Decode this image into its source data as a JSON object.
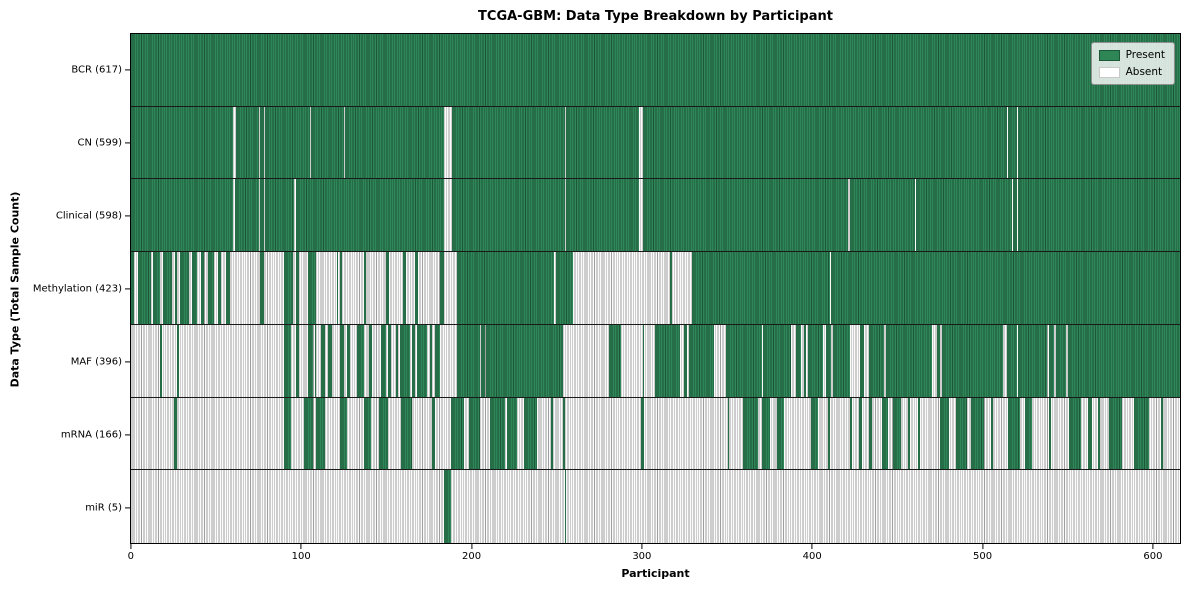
{
  "title": "TCGA-GBM: Data Type Breakdown by Participant",
  "legend": {
    "items": [
      {
        "label": "Present",
        "color": "#2e8656"
      },
      {
        "label": "Absent",
        "color": "#ffffff"
      }
    ],
    "position": "upper right"
  },
  "colors": {
    "present_fill": "#2e8656",
    "present_edge": "#1d5737",
    "absent_fill": "#fbfbfb",
    "absent_edge": "#9f9f9f",
    "axes_border": "#000000",
    "row_separator": "#1a1a1a"
  },
  "chart_data": {
    "type": "heatmap",
    "title": "TCGA-GBM: Data Type Breakdown by Participant",
    "xlabel": "Participant",
    "ylabel": "Data Type (Total Sample Count)",
    "x_ticks": [
      0,
      100,
      200,
      300,
      400,
      500,
      600
    ],
    "xlim": [
      0,
      617
    ],
    "n_participants": 617,
    "grid": false,
    "legend_position": "upper right",
    "states": [
      "Present",
      "Absent"
    ],
    "rows": [
      {
        "data_type": "BCR",
        "label": "BCR (617)",
        "total": 617,
        "present_intervals": [
          [
            0,
            617
          ]
        ]
      },
      {
        "data_type": "CN",
        "label": "CN (599)",
        "total": 599,
        "present_intervals": [
          [
            0,
            60
          ],
          [
            62,
            75
          ],
          [
            76,
            78
          ],
          [
            79,
            105
          ],
          [
            106,
            125
          ],
          [
            126,
            184
          ],
          [
            189,
            255
          ],
          [
            256,
            299
          ],
          [
            301,
            515
          ],
          [
            516,
            521
          ],
          [
            522,
            617
          ]
        ]
      },
      {
        "data_type": "Clinical",
        "label": "Clinical (598)",
        "total": 598,
        "present_intervals": [
          [
            0,
            60
          ],
          [
            61,
            75
          ],
          [
            76,
            78
          ],
          [
            79,
            96
          ],
          [
            97,
            184
          ],
          [
            189,
            255
          ],
          [
            256,
            299
          ],
          [
            301,
            422
          ],
          [
            423,
            461
          ],
          [
            462,
            518
          ],
          [
            519,
            521
          ],
          [
            522,
            617
          ]
        ]
      },
      {
        "data_type": "Methylation",
        "label": "Methylation (423)",
        "total": 423,
        "present_intervals": [
          [
            0,
            2
          ],
          [
            4,
            12
          ],
          [
            13,
            17
          ],
          [
            19,
            24
          ],
          [
            26,
            27
          ],
          [
            29,
            34
          ],
          [
            36,
            39
          ],
          [
            41,
            43
          ],
          [
            45,
            49
          ],
          [
            51,
            53
          ],
          [
            56,
            58
          ],
          [
            76,
            78
          ],
          [
            90,
            95
          ],
          [
            97,
            99
          ],
          [
            104,
            109
          ],
          [
            121,
            122
          ],
          [
            123,
            124
          ],
          [
            137,
            138
          ],
          [
            150,
            152
          ],
          [
            160,
            162
          ],
          [
            167,
            169
          ],
          [
            182,
            184
          ],
          [
            192,
            249
          ],
          [
            250,
            260
          ],
          [
            317,
            318
          ],
          [
            330,
            411
          ],
          [
            412,
            617
          ]
        ]
      },
      {
        "data_type": "MAF",
        "label": "MAF (396)",
        "total": 396,
        "present_intervals": [
          [
            17,
            18
          ],
          [
            27,
            28
          ],
          [
            90,
            94
          ],
          [
            97,
            99
          ],
          [
            104,
            107
          ],
          [
            108,
            109
          ],
          [
            112,
            114
          ],
          [
            116,
            118
          ],
          [
            123,
            125
          ],
          [
            127,
            129
          ],
          [
            133,
            137
          ],
          [
            140,
            142
          ],
          [
            147,
            150
          ],
          [
            151,
            153
          ],
          [
            156,
            157
          ],
          [
            158,
            164
          ],
          [
            165,
            167
          ],
          [
            168,
            174
          ],
          [
            176,
            177
          ],
          [
            179,
            182
          ],
          [
            192,
            205
          ],
          [
            206,
            208
          ],
          [
            209,
            254
          ],
          [
            281,
            288
          ],
          [
            301,
            302
          ],
          [
            308,
            323
          ],
          [
            325,
            327
          ],
          [
            328,
            343
          ],
          [
            350,
            371
          ],
          [
            372,
            388
          ],
          [
            391,
            394
          ],
          [
            396,
            397
          ],
          [
            398,
            407
          ],
          [
            409,
            412
          ],
          [
            413,
            423
          ],
          [
            429,
            431
          ],
          [
            434,
            443
          ],
          [
            444,
            471
          ],
          [
            474,
            476
          ],
          [
            477,
            513
          ],
          [
            515,
            521
          ],
          [
            522,
            539
          ],
          [
            540,
            543
          ],
          [
            544,
            550
          ],
          [
            551,
            617
          ]
        ]
      },
      {
        "data_type": "mRNA",
        "label": "mRNA (166)",
        "total": 166,
        "present_intervals": [
          [
            25,
            27
          ],
          [
            90,
            94
          ],
          [
            102,
            107
          ],
          [
            109,
            114
          ],
          [
            123,
            127
          ],
          [
            137,
            141
          ],
          [
            146,
            151
          ],
          [
            159,
            165
          ],
          [
            177,
            179
          ],
          [
            188,
            196
          ],
          [
            199,
            205
          ],
          [
            211,
            220
          ],
          [
            221,
            227
          ],
          [
            231,
            239
          ],
          [
            247,
            248
          ],
          [
            254,
            255
          ],
          [
            300,
            302
          ],
          [
            351,
            352
          ],
          [
            360,
            369
          ],
          [
            371,
            376
          ],
          [
            380,
            384
          ],
          [
            400,
            404
          ],
          [
            410,
            411
          ],
          [
            423,
            424
          ],
          [
            428,
            430
          ],
          [
            434,
            436
          ],
          [
            442,
            445
          ],
          [
            448,
            453
          ],
          [
            457,
            458
          ],
          [
            463,
            464
          ],
          [
            476,
            481
          ],
          [
            485,
            492
          ],
          [
            494,
            502
          ],
          [
            506,
            507
          ],
          [
            516,
            523
          ],
          [
            526,
            530
          ],
          [
            540,
            541
          ],
          [
            552,
            559
          ],
          [
            563,
            565
          ],
          [
            569,
            570
          ],
          [
            575,
            583
          ],
          [
            590,
            599
          ],
          [
            606,
            607
          ]
        ]
      },
      {
        "data_type": "miR",
        "label": "miR (5)",
        "total": 5,
        "present_intervals": [
          [
            184,
            188
          ],
          [
            255,
            256
          ]
        ]
      }
    ]
  }
}
